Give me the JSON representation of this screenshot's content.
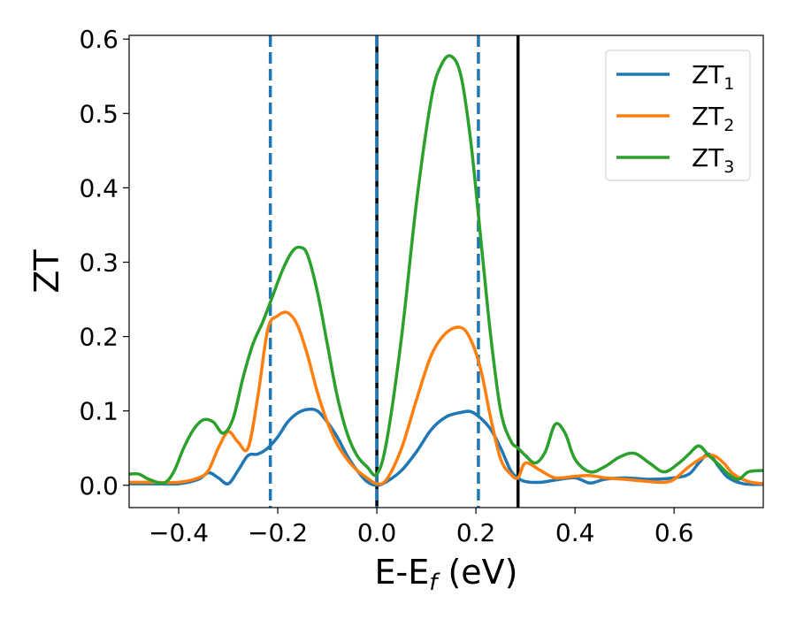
{
  "chart_data": {
    "type": "line",
    "xlabel": "E-E",
    "xlabel_sub": "f",
    "xlabel_unit": " (eV)",
    "ylabel": "ZT",
    "xlim": [
      -0.5,
      0.78
    ],
    "ylim": [
      -0.03,
      0.605
    ],
    "x_ticks": [
      -0.4,
      -0.2,
      0.0,
      0.2,
      0.4,
      0.6
    ],
    "x_tick_labels": [
      "−0.4",
      "−0.2",
      "0.0",
      "0.2",
      "0.4",
      "0.6"
    ],
    "y_ticks": [
      0.0,
      0.1,
      0.2,
      0.3,
      0.4,
      0.5,
      0.6
    ],
    "y_tick_labels": [
      "0.0",
      "0.1",
      "0.2",
      "0.3",
      "0.4",
      "0.5",
      "0.6"
    ],
    "grid": false,
    "legend_position": "top-right",
    "vertical_lines": [
      {
        "x": -0.215,
        "style": "dashed",
        "color": "#1f77b4"
      },
      {
        "x": 0.0,
        "style": "solid",
        "color": "#000000"
      },
      {
        "x": 0.0,
        "style": "dashed",
        "color": "#1f77b4"
      },
      {
        "x": 0.205,
        "style": "dashed",
        "color": "#1f77b4"
      },
      {
        "x": 0.285,
        "style": "solid",
        "color": "#000000"
      }
    ],
    "series": [
      {
        "name": "ZT",
        "sub": "1",
        "color": "#1f77b4",
        "x": [
          -0.5,
          -0.45,
          -0.4,
          -0.36,
          -0.34,
          -0.32,
          -0.3,
          -0.28,
          -0.26,
          -0.24,
          -0.22,
          -0.2,
          -0.18,
          -0.16,
          -0.14,
          -0.12,
          -0.1,
          -0.08,
          -0.06,
          -0.04,
          -0.02,
          0.0,
          0.02,
          0.05,
          0.08,
          0.11,
          0.14,
          0.17,
          0.19,
          0.21,
          0.23,
          0.25,
          0.27,
          0.285,
          0.3,
          0.33,
          0.36,
          0.4,
          0.43,
          0.46,
          0.5,
          0.55,
          0.6,
          0.63,
          0.65,
          0.67,
          0.69,
          0.71,
          0.74,
          0.78
        ],
        "y": [
          0.002,
          0.002,
          0.002,
          0.008,
          0.017,
          0.01,
          0.002,
          0.02,
          0.04,
          0.042,
          0.05,
          0.065,
          0.085,
          0.097,
          0.102,
          0.1,
          0.085,
          0.065,
          0.04,
          0.02,
          0.005,
          0.0,
          0.005,
          0.02,
          0.045,
          0.075,
          0.092,
          0.098,
          0.099,
          0.09,
          0.075,
          0.05,
          0.02,
          0.01,
          0.005,
          0.004,
          0.007,
          0.01,
          0.003,
          0.008,
          0.01,
          0.008,
          0.01,
          0.015,
          0.03,
          0.042,
          0.025,
          0.01,
          0.002,
          0.001
        ]
      },
      {
        "name": "ZT",
        "sub": "2",
        "color": "#ff7f0e",
        "x": [
          -0.5,
          -0.45,
          -0.4,
          -0.36,
          -0.34,
          -0.32,
          -0.3,
          -0.28,
          -0.26,
          -0.24,
          -0.22,
          -0.2,
          -0.18,
          -0.16,
          -0.14,
          -0.12,
          -0.1,
          -0.08,
          -0.06,
          -0.04,
          -0.02,
          0.0,
          0.02,
          0.05,
          0.08,
          0.11,
          0.14,
          0.17,
          0.19,
          0.21,
          0.23,
          0.25,
          0.27,
          0.285,
          0.3,
          0.33,
          0.36,
          0.4,
          0.43,
          0.46,
          0.5,
          0.55,
          0.58,
          0.6,
          0.63,
          0.66,
          0.68,
          0.7,
          0.72,
          0.75,
          0.78
        ],
        "y": [
          0.004,
          0.004,
          0.004,
          0.01,
          0.02,
          0.05,
          0.072,
          0.058,
          0.05,
          0.12,
          0.21,
          0.228,
          0.232,
          0.215,
          0.175,
          0.125,
          0.085,
          0.055,
          0.035,
          0.02,
          0.01,
          0.002,
          0.008,
          0.05,
          0.115,
          0.175,
          0.205,
          0.212,
          0.195,
          0.155,
          0.09,
          0.035,
          0.015,
          0.01,
          0.03,
          0.02,
          0.01,
          0.012,
          0.013,
          0.01,
          0.008,
          0.005,
          0.004,
          0.008,
          0.025,
          0.038,
          0.04,
          0.03,
          0.015,
          0.005,
          0.002
        ]
      },
      {
        "name": "ZT",
        "sub": "3",
        "color": "#2ca02c",
        "x": [
          -0.5,
          -0.48,
          -0.46,
          -0.43,
          -0.41,
          -0.39,
          -0.37,
          -0.35,
          -0.33,
          -0.31,
          -0.29,
          -0.27,
          -0.25,
          -0.23,
          -0.21,
          -0.19,
          -0.17,
          -0.155,
          -0.14,
          -0.12,
          -0.1,
          -0.08,
          -0.06,
          -0.04,
          -0.02,
          0.0,
          0.02,
          0.05,
          0.08,
          0.11,
          0.13,
          0.15,
          0.17,
          0.19,
          0.21,
          0.23,
          0.25,
          0.27,
          0.285,
          0.3,
          0.32,
          0.34,
          0.36,
          0.38,
          0.4,
          0.43,
          0.46,
          0.49,
          0.52,
          0.55,
          0.58,
          0.61,
          0.63,
          0.65,
          0.67,
          0.69,
          0.71,
          0.73,
          0.75,
          0.78
        ],
        "y": [
          0.015,
          0.015,
          0.008,
          0.003,
          0.018,
          0.05,
          0.075,
          0.088,
          0.085,
          0.07,
          0.09,
          0.145,
          0.19,
          0.22,
          0.255,
          0.29,
          0.315,
          0.32,
          0.31,
          0.26,
          0.19,
          0.12,
          0.07,
          0.04,
          0.025,
          0.015,
          0.06,
          0.2,
          0.38,
          0.52,
          0.565,
          0.577,
          0.55,
          0.46,
          0.33,
          0.2,
          0.1,
          0.06,
          0.05,
          0.04,
          0.03,
          0.045,
          0.082,
          0.07,
          0.035,
          0.018,
          0.025,
          0.038,
          0.043,
          0.03,
          0.018,
          0.03,
          0.042,
          0.053,
          0.04,
          0.028,
          0.015,
          0.008,
          0.018,
          0.02
        ]
      }
    ]
  }
}
